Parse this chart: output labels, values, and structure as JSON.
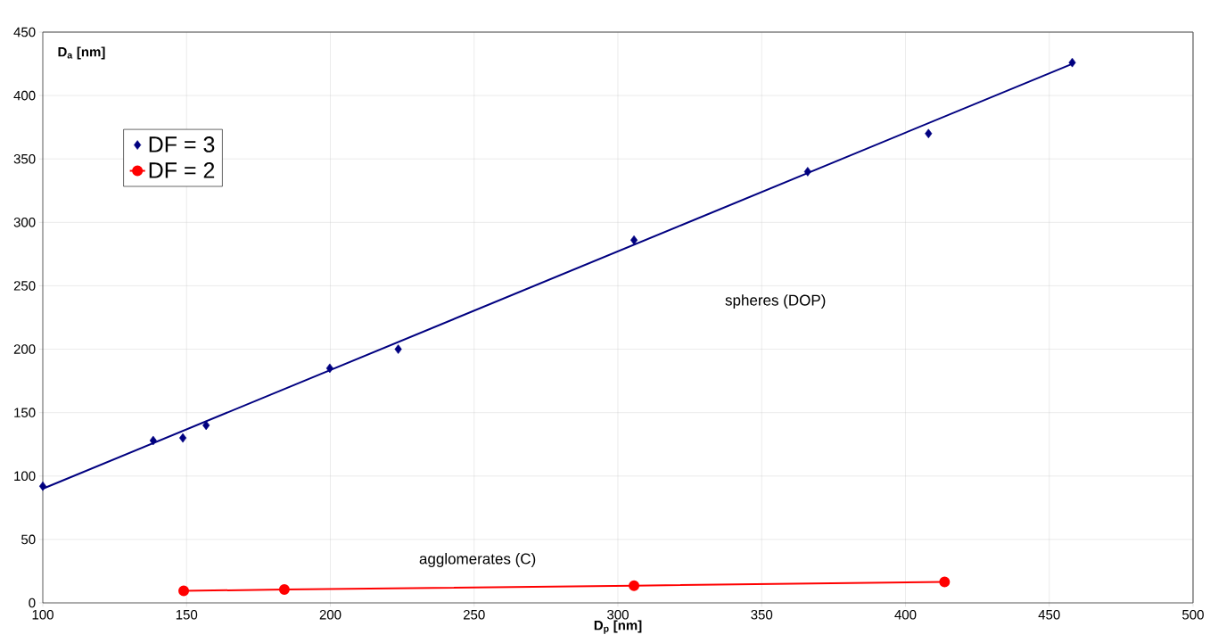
{
  "chart_data": {
    "type": "scatter",
    "xlabel": "D$_{p}$ [nm]",
    "ylabel": "D$_{a}$ [nm]",
    "xlim": [
      100,
      500
    ],
    "ylim": [
      0,
      450
    ],
    "xticks": [
      100,
      150,
      200,
      250,
      300,
      350,
      400,
      450,
      500
    ],
    "yticks": [
      0,
      50,
      100,
      150,
      200,
      250,
      300,
      350,
      400,
      450
    ],
    "grid": true,
    "legend": "top left",
    "series": [
      {
        "name": "DF = 3",
        "marker": "diamond",
        "color": "#000080",
        "x": [
          100,
          138.4,
          148.7,
          156.8,
          199.8,
          223.6,
          305.6,
          366,
          408,
          458
        ],
        "values": [
          92,
          128,
          130,
          140,
          185,
          200,
          286,
          340,
          370,
          426
        ]
      },
      {
        "type": "line",
        "marker": "none",
        "color": "#000080",
        "x": [
          100,
          458
        ],
        "values": [
          90,
          425
        ]
      },
      {
        "name": "DF = 2",
        "type": "line",
        "marker": "circle",
        "color": "#ff0000",
        "x": [
          149,
          184,
          305.6,
          413.6
        ],
        "values": [
          9.5,
          10.5,
          13.6,
          16.5
        ]
      }
    ],
    "annotations": [
      "spheres (DOP)",
      "agglomerates (C)"
    ]
  }
}
